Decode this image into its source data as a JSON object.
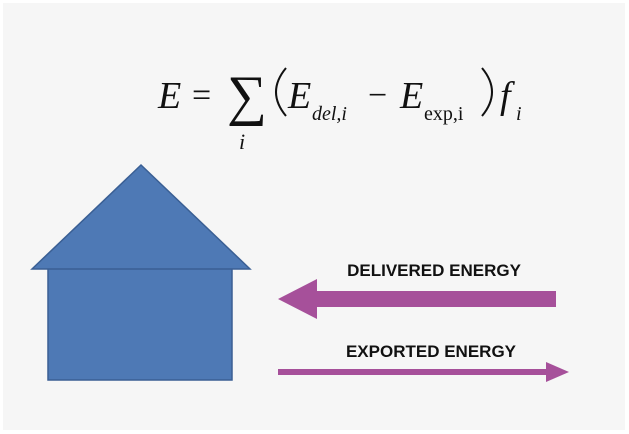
{
  "diagram": {
    "formula": {
      "lhs": "E",
      "equals": "=",
      "sum_symbol": "∑",
      "sum_index": "i",
      "term1_base": "E",
      "term1_sub": "del,i",
      "minus": "−",
      "term2_base": "E",
      "term2_sub": "exp,i",
      "factor_base": "f",
      "factor_sub": "i"
    },
    "arrows": {
      "delivered": {
        "label": "DELIVERED ENERGY",
        "direction": "left",
        "color": "#a6509a"
      },
      "exported": {
        "label": "EXPORTED ENERGY",
        "direction": "right",
        "color": "#a6509a"
      }
    },
    "house": {
      "icon": "house-icon",
      "color": "#4e79b5",
      "stroke": "#3a5f94"
    }
  }
}
